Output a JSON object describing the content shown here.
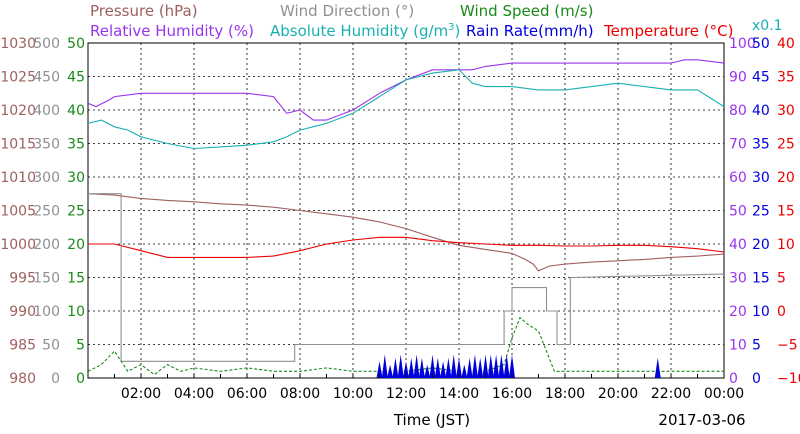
{
  "chart_data": {
    "type": "line",
    "date_label": "2017-03-06",
    "x_axis": {
      "title": "Time (JST)",
      "range_hours": [
        0,
        24
      ],
      "ticks": [
        {
          "h": 2,
          "label": "02:00"
        },
        {
          "h": 4,
          "label": "04:00"
        },
        {
          "h": 6,
          "label": "06:00"
        },
        {
          "h": 8,
          "label": "08:00"
        },
        {
          "h": 10,
          "label": "10:00"
        },
        {
          "h": 12,
          "label": "12:00"
        },
        {
          "h": 14,
          "label": "14:00"
        },
        {
          "h": 16,
          "label": "16:00"
        },
        {
          "h": 18,
          "label": "18:00"
        },
        {
          "h": 20,
          "label": "20:00"
        },
        {
          "h": 22,
          "label": "22:00"
        },
        {
          "h": 24,
          "label": "00:00"
        }
      ]
    },
    "grid": true,
    "legend": {
      "row1": [
        {
          "label": "Pressure (hPa)",
          "color": "#a06060"
        },
        {
          "label": "Wind Direction (°)",
          "color": "#909090"
        },
        {
          "label": "Wind Speed (m/s)",
          "color": "#1a8a1a"
        }
      ],
      "row2": [
        {
          "label": "Relative Humidity (%)",
          "color": "#9933ee"
        },
        {
          "label": "Absolute Humidity (g/m",
          "sup": "3",
          "close": ")",
          "color": "#1ab0b0"
        },
        {
          "label": "Rain Rate(mm/h)",
          "color": "#0000dd"
        },
        {
          "label": "Temperature (°C)",
          "color": "#ee0000"
        }
      ],
      "abs_humidity_scale": {
        "label": "x0.1",
        "color": "#1ab0b0"
      }
    },
    "y_axes": [
      {
        "name": "Pressure (hPa)",
        "color": "#a06060",
        "ticks": [
          "980",
          "985",
          "990",
          "995",
          "1000",
          "1005",
          "1010",
          "1015",
          "1020",
          "1025",
          "1030"
        ]
      },
      {
        "name": "Wind Direction (°)",
        "color": "#909090",
        "ticks": [
          "0",
          "50",
          "100",
          "150",
          "200",
          "250",
          "300",
          "350",
          "400",
          "450",
          "500"
        ]
      },
      {
        "name": "Wind Speed (m/s)",
        "color": "#1a8a1a",
        "ticks": [
          "0",
          "5",
          "10",
          "15",
          "20",
          "25",
          "30",
          "35",
          "40",
          "45",
          "50"
        ]
      },
      {
        "name": "Relative Humidity (%)",
        "color": "#9933ee",
        "ticks": [
          "0",
          "10",
          "20",
          "30",
          "40",
          "50",
          "60",
          "70",
          "80",
          "90",
          "100"
        ]
      },
      {
        "name": "Rain Rate(mm/h)",
        "color": "#0000dd",
        "ticks": [
          "0",
          "5",
          "10",
          "15",
          "20",
          "25",
          "30",
          "35",
          "40",
          "45",
          "50"
        ]
      },
      {
        "name": "Temperature (°C)",
        "color": "#ee0000",
        "ticks": [
          "−10",
          "−5",
          "0",
          "5",
          "10",
          "15",
          "20",
          "25",
          "30",
          "35",
          "40"
        ]
      }
    ],
    "series": [
      {
        "name": "Pressure (hPa)",
        "color": "#a06060",
        "axis_min": 980,
        "axis_max": 1030,
        "points": [
          [
            0,
            1007.5
          ],
          [
            1,
            1007.3
          ],
          [
            2,
            1006.8
          ],
          [
            3,
            1006.5
          ],
          [
            4,
            1006.3
          ],
          [
            5,
            1006.0
          ],
          [
            6,
            1005.8
          ],
          [
            7,
            1005.5
          ],
          [
            8,
            1005.0
          ],
          [
            9,
            1004.5
          ],
          [
            10,
            1004.0
          ],
          [
            11,
            1003.3
          ],
          [
            12,
            1002.3
          ],
          [
            13,
            1001.0
          ],
          [
            14,
            999.8
          ],
          [
            15,
            999.2
          ],
          [
            16,
            998.6
          ],
          [
            16.5,
            997.7
          ],
          [
            16.8,
            997.0
          ],
          [
            17.0,
            996.0
          ],
          [
            17.4,
            996.7
          ],
          [
            18,
            997.0
          ],
          [
            19,
            997.3
          ],
          [
            20,
            997.5
          ],
          [
            21,
            997.7
          ],
          [
            22,
            998.0
          ],
          [
            23,
            998.2
          ],
          [
            24,
            998.5
          ]
        ]
      },
      {
        "name": "Relative Humidity (%)",
        "color": "#9933ee",
        "axis_min": 0,
        "axis_max": 100,
        "points": [
          [
            0,
            82
          ],
          [
            0.3,
            81
          ],
          [
            0.8,
            83
          ],
          [
            1,
            84
          ],
          [
            2,
            85
          ],
          [
            3,
            85
          ],
          [
            5,
            85
          ],
          [
            6,
            85
          ],
          [
            7,
            84
          ],
          [
            7.5,
            79
          ],
          [
            8,
            80
          ],
          [
            8.5,
            77
          ],
          [
            9,
            77
          ],
          [
            10,
            80
          ],
          [
            11,
            85
          ],
          [
            12,
            89
          ],
          [
            13,
            92
          ],
          [
            14,
            92
          ],
          [
            14.5,
            92
          ],
          [
            15,
            93
          ],
          [
            16,
            94
          ],
          [
            17,
            94
          ],
          [
            18,
            94
          ],
          [
            19,
            94
          ],
          [
            20,
            94
          ],
          [
            21,
            94
          ],
          [
            22,
            94
          ],
          [
            22.5,
            95
          ],
          [
            23,
            95
          ],
          [
            24,
            94
          ]
        ]
      },
      {
        "name": "Absolute Humidity (g/m3) x0.1",
        "color": "#1ab0b0",
        "axis_min": 0,
        "axis_max": 100,
        "points": [
          [
            0,
            76
          ],
          [
            0.5,
            77
          ],
          [
            1,
            75
          ],
          [
            1.5,
            74
          ],
          [
            2,
            72
          ],
          [
            3,
            70
          ],
          [
            4,
            68.5
          ],
          [
            5,
            69
          ],
          [
            6,
            69.5
          ],
          [
            7,
            70.5
          ],
          [
            7.5,
            72
          ],
          [
            8,
            74
          ],
          [
            9,
            76
          ],
          [
            10,
            79
          ],
          [
            11,
            84
          ],
          [
            12,
            89
          ],
          [
            13,
            91
          ],
          [
            14,
            92
          ],
          [
            14.5,
            88
          ],
          [
            15,
            87
          ],
          [
            16,
            87
          ],
          [
            17,
            86
          ],
          [
            18,
            86
          ],
          [
            19,
            87
          ],
          [
            20,
            88
          ],
          [
            21,
            87
          ],
          [
            22,
            86
          ],
          [
            23,
            86
          ],
          [
            24,
            81
          ]
        ]
      },
      {
        "name": "Temperature (°C)",
        "color": "#ee0000",
        "axis_min": -10,
        "axis_max": 40,
        "points": [
          [
            0,
            10
          ],
          [
            1,
            10
          ],
          [
            2,
            9
          ],
          [
            3,
            8
          ],
          [
            4,
            8
          ],
          [
            5,
            8
          ],
          [
            6,
            8
          ],
          [
            7,
            8.2
          ],
          [
            8,
            9
          ],
          [
            9,
            10
          ],
          [
            10,
            10.6
          ],
          [
            11,
            11
          ],
          [
            12,
            11
          ],
          [
            13,
            10.5
          ],
          [
            14,
            10.2
          ],
          [
            15,
            10
          ],
          [
            16,
            9.8
          ],
          [
            17,
            9.8
          ],
          [
            18,
            9.7
          ],
          [
            19,
            9.7
          ],
          [
            20,
            9.8
          ],
          [
            21,
            9.8
          ],
          [
            22,
            9.6
          ],
          [
            23,
            9.3
          ],
          [
            24,
            8.8
          ]
        ]
      },
      {
        "name": "Wind Direction (°)",
        "color": "#909090",
        "axis_min": 0,
        "axis_max": 500,
        "step": true,
        "points": [
          [
            0,
            275
          ],
          [
            1.25,
            275
          ],
          [
            1.25,
            25
          ],
          [
            7.8,
            25
          ],
          [
            7.8,
            50
          ],
          [
            15.7,
            50
          ],
          [
            15.7,
            100
          ],
          [
            16.0,
            100
          ],
          [
            16.0,
            135
          ],
          [
            17.3,
            135
          ],
          [
            17.3,
            100
          ],
          [
            17.7,
            100
          ],
          [
            17.7,
            50
          ],
          [
            18.2,
            50
          ],
          [
            18.2,
            150
          ],
          [
            24,
            155
          ]
        ]
      },
      {
        "name": "Wind Speed (m/s)",
        "color": "#1a8a1a",
        "axis_min": 0,
        "axis_max": 50,
        "points": [
          [
            0,
            1
          ],
          [
            0.5,
            2
          ],
          [
            1,
            4
          ],
          [
            1.5,
            1
          ],
          [
            2,
            2
          ],
          [
            2.5,
            0.5
          ],
          [
            3,
            2
          ],
          [
            3.5,
            1
          ],
          [
            4,
            1.5
          ],
          [
            5,
            1
          ],
          [
            6,
            1.5
          ],
          [
            7,
            1
          ],
          [
            8,
            1
          ],
          [
            9,
            1.5
          ],
          [
            10,
            1
          ],
          [
            11,
            1
          ],
          [
            12,
            1
          ],
          [
            13,
            1.5
          ],
          [
            14,
            1
          ],
          [
            15,
            1
          ],
          [
            15.7,
            2
          ],
          [
            16,
            6
          ],
          [
            16.3,
            9
          ],
          [
            16.6,
            8
          ],
          [
            17,
            7
          ],
          [
            17.3,
            4
          ],
          [
            17.6,
            1
          ],
          [
            18,
            1
          ],
          [
            19,
            1
          ],
          [
            20,
            1
          ],
          [
            21,
            1
          ],
          [
            22,
            1
          ],
          [
            23,
            1
          ],
          [
            24,
            1
          ]
        ]
      },
      {
        "name": "Rain Rate(mm/h)",
        "color": "#0000dd",
        "axis_min": 0,
        "axis_max": 50,
        "type": "bar",
        "points": [
          [
            11.0,
            2.5
          ],
          [
            11.2,
            3.5
          ],
          [
            11.4,
            2
          ],
          [
            11.6,
            3
          ],
          [
            11.8,
            3.5
          ],
          [
            12.0,
            2.5
          ],
          [
            12.2,
            3
          ],
          [
            12.4,
            3.5
          ],
          [
            12.6,
            3
          ],
          [
            12.8,
            2
          ],
          [
            13.0,
            3.5
          ],
          [
            13.2,
            3
          ],
          [
            13.4,
            2.5
          ],
          [
            13.6,
            3
          ],
          [
            13.8,
            3.5
          ],
          [
            14.0,
            3
          ],
          [
            14.2,
            2
          ],
          [
            14.4,
            3
          ],
          [
            14.6,
            3.5
          ],
          [
            14.8,
            3
          ],
          [
            15.0,
            3.5
          ],
          [
            15.2,
            3.5
          ],
          [
            15.4,
            3.5
          ],
          [
            15.6,
            3.5
          ],
          [
            15.8,
            3.5
          ],
          [
            16.0,
            3.5
          ],
          [
            21.5,
            3
          ]
        ]
      }
    ]
  }
}
